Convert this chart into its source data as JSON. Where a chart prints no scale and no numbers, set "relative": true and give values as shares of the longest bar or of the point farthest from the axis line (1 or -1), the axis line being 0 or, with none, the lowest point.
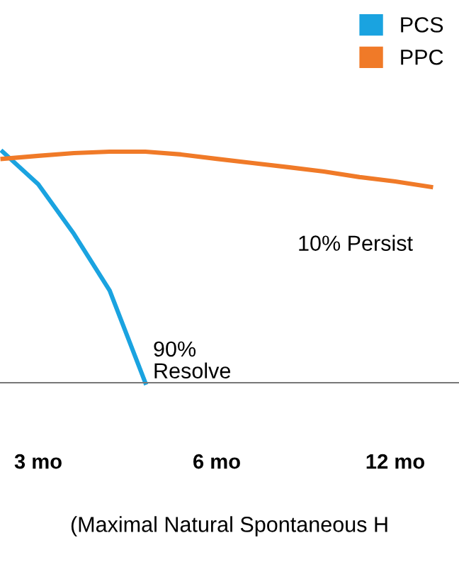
{
  "chart_data": {
    "type": "line",
    "relative": true,
    "xlabel": "(Maximal Natural Spontaneous H",
    "categories": [
      null,
      "3 mo",
      null,
      null,
      null,
      null,
      "6 mo",
      null,
      null,
      null,
      null,
      "12 mo",
      null
    ],
    "series": [
      {
        "name": "PCS",
        "color": "#1aa3e0",
        "values": [
          1.0,
          0.859,
          0.644,
          0.399,
          0,
          null,
          null,
          null,
          null,
          null,
          null,
          null,
          null
        ]
      },
      {
        "name": "PPC",
        "color": "#f07a28",
        "values": [
          0.969,
          0.982,
          0.994,
          1.0,
          1.0,
          0.988,
          0.969,
          0.951,
          0.933,
          0.914,
          0.89,
          0.871,
          0.847
        ]
      }
    ],
    "annotations": [
      "90%\nResolve",
      "10% Persist"
    ],
    "legend": "top right",
    "grid": false,
    "marker": "none",
    "line_style": "solid"
  }
}
